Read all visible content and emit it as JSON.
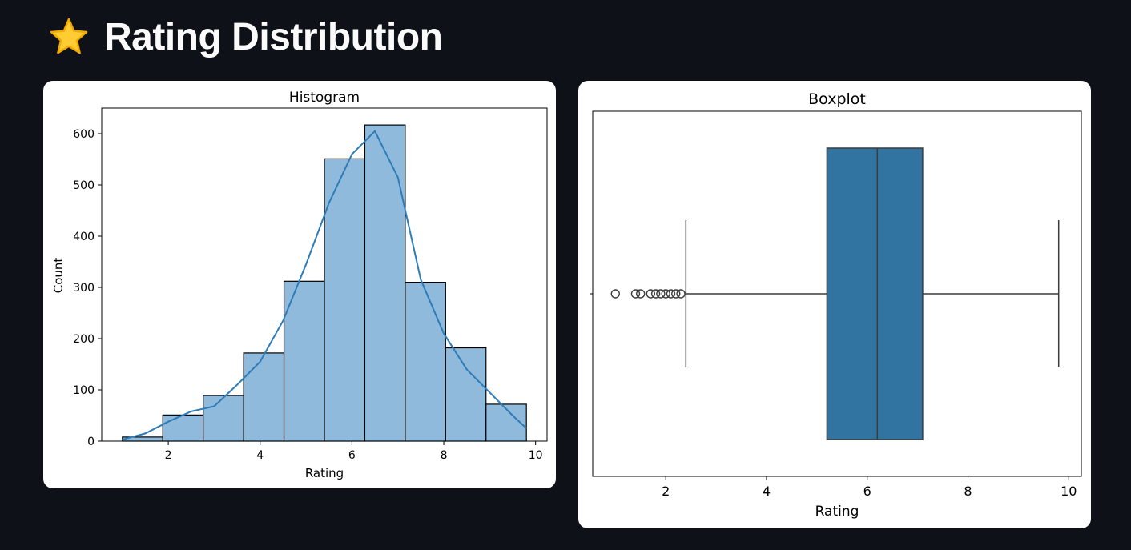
{
  "header": {
    "title": "Rating Distribution",
    "icon": "star-icon"
  },
  "colors": {
    "page_background": "#0e1117",
    "hist_bar": "#8fbadc",
    "kde_line": "#2d7cb8",
    "box_fill": "#3274a1"
  },
  "chart_data": [
    {
      "type": "bar",
      "subtype": "histogram",
      "title": "Histogram",
      "xlabel": "Rating",
      "ylabel": "Count",
      "xlim": [
        0.55,
        10.25
      ],
      "ylim": [
        0,
        650
      ],
      "xticks": [
        2,
        4,
        6,
        8,
        10
      ],
      "yticks": [
        0,
        100,
        200,
        300,
        400,
        500,
        600
      ],
      "bin_edges": [
        1.0,
        1.88,
        2.76,
        3.64,
        4.52,
        5.4,
        6.28,
        7.16,
        8.04,
        8.92,
        9.8
      ],
      "values": [
        8,
        51,
        89,
        172,
        312,
        551,
        617,
        310,
        182,
        72
      ],
      "kde": {
        "x": [
          1.0,
          1.5,
          2.0,
          2.5,
          3.0,
          3.5,
          4.0,
          4.5,
          5.0,
          5.5,
          6.0,
          6.5,
          7.0,
          7.5,
          8.0,
          8.5,
          9.0,
          9.5,
          9.8
        ],
        "y": [
          3,
          15,
          38,
          58,
          68,
          110,
          155,
          235,
          345,
          465,
          560,
          605,
          515,
          315,
          210,
          140,
          95,
          50,
          25
        ]
      },
      "grid": false
    },
    {
      "type": "box",
      "title": "Boxplot",
      "xlabel": "Rating",
      "xlim": [
        0.55,
        10.25
      ],
      "xticks": [
        2,
        4,
        6,
        8,
        10
      ],
      "whisker_low": 2.4,
      "q1": 5.2,
      "median": 6.2,
      "q3": 7.1,
      "whisker_high": 9.8,
      "outliers": [
        1.0,
        1.4,
        1.5,
        1.7,
        1.8,
        1.9,
        2.0,
        2.1,
        2.2,
        2.3
      ],
      "grid": false
    }
  ]
}
